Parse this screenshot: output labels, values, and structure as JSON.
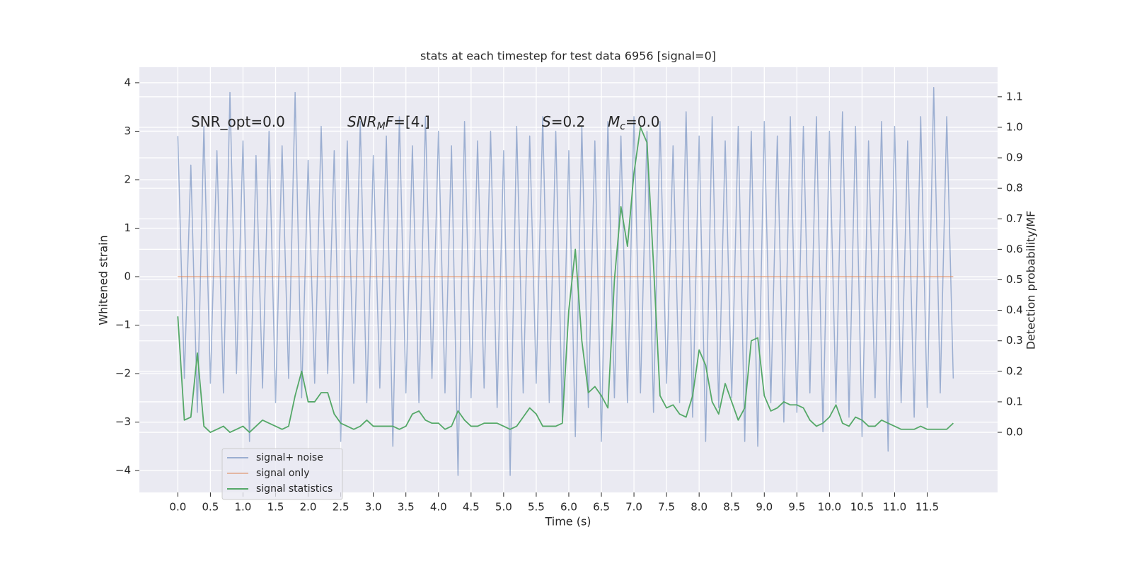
{
  "chart_data": {
    "type": "line",
    "title": "stats at each timestep for test data 6956 [signal=0]",
    "xlabel": "Time (s)",
    "ylabel": "Whitened strain",
    "y2label": "Detection probability/MF",
    "annotations": [
      [
        "SNR_opt=0.0"
      ],
      [
        "SNR",
        "M",
        "F",
        "=[4.]"
      ],
      [
        "S",
        "=0.2"
      ],
      [
        "M",
        "c",
        "=0.0"
      ]
    ],
    "x": [
      0.0,
      0.1,
      0.2,
      0.3,
      0.4,
      0.5,
      0.6,
      0.7,
      0.8,
      0.9,
      1.0,
      1.1,
      1.2,
      1.3,
      1.4,
      1.5,
      1.6,
      1.7,
      1.8,
      1.9,
      2.0,
      2.1,
      2.2,
      2.3,
      2.4,
      2.5,
      2.6,
      2.7,
      2.8,
      2.9,
      3.0,
      3.1,
      3.2,
      3.3,
      3.4,
      3.5,
      3.6,
      3.7,
      3.8,
      3.9,
      4.0,
      4.1,
      4.2,
      4.3,
      4.4,
      4.5,
      4.6,
      4.7,
      4.8,
      4.9,
      5.0,
      5.1,
      5.2,
      5.3,
      5.4,
      5.5,
      5.6,
      5.7,
      5.8,
      5.9,
      6.0,
      6.1,
      6.2,
      6.3,
      6.4,
      6.5,
      6.6,
      6.7,
      6.8,
      6.9,
      7.0,
      7.1,
      7.2,
      7.3,
      7.4,
      7.5,
      7.6,
      7.7,
      7.8,
      7.9,
      8.0,
      8.1,
      8.2,
      8.3,
      8.4,
      8.5,
      8.6,
      8.7,
      8.8,
      8.9,
      9.0,
      9.1,
      9.2,
      9.3,
      9.4,
      9.5,
      9.6,
      9.7,
      9.8,
      9.9,
      10.0,
      10.1,
      10.2,
      10.3,
      10.4,
      10.5,
      10.6,
      10.7,
      10.8,
      10.9,
      11.0,
      11.1,
      11.2,
      11.3,
      11.4,
      11.5,
      11.6,
      11.7,
      11.8,
      11.9
    ],
    "series": [
      {
        "name": "signal+ noise",
        "color": "#4c72b0",
        "values": [
          2.9,
          -2.1,
          2.3,
          -2.8,
          3.1,
          -2.2,
          2.6,
          -2.4,
          3.8,
          -2.0,
          2.8,
          -3.4,
          2.5,
          -2.3,
          3.0,
          -2.6,
          2.7,
          -2.1,
          3.8,
          -2.5,
          2.4,
          -2.2,
          3.1,
          -2.0,
          2.6,
          -3.4,
          2.8,
          -2.2,
          3.2,
          -2.6,
          2.5,
          -2.3,
          2.9,
          -3.5,
          3.3,
          -2.4,
          2.7,
          -2.6,
          3.3,
          -2.1,
          3.0,
          -2.4,
          2.7,
          -4.1,
          3.2,
          -2.5,
          2.8,
          -2.3,
          3.0,
          -2.7,
          2.6,
          -4.1,
          3.1,
          -2.4,
          2.9,
          -2.2,
          3.3,
          -2.6,
          3.0,
          -2.9,
          2.6,
          -3.3,
          3.1,
          -2.7,
          2.8,
          -3.4,
          3.2,
          -2.5,
          2.9,
          -2.6,
          3.3,
          -2.4,
          3.0,
          -2.8,
          3.2,
          -2.2,
          2.7,
          -2.6,
          3.4,
          -2.9,
          2.9,
          -3.4,
          3.3,
          -2.7,
          2.8,
          -2.5,
          3.1,
          -3.4,
          3.0,
          -3.5,
          3.2,
          -2.6,
          2.9,
          -3.0,
          3.3,
          -2.8,
          3.1,
          -2.4,
          3.3,
          -3.2,
          3.0,
          -2.6,
          3.4,
          -2.9,
          3.1,
          -3.3,
          2.8,
          -2.5,
          3.2,
          -3.6,
          3.1,
          -2.6,
          2.8,
          -2.9,
          3.3,
          -2.7,
          3.9,
          -2.4,
          3.3,
          -2.1
        ]
      },
      {
        "name": "signal only",
        "color": "#dd8452",
        "values": [
          0,
          0,
          0,
          0,
          0,
          0,
          0,
          0,
          0,
          0,
          0,
          0,
          0,
          0,
          0,
          0,
          0,
          0,
          0,
          0,
          0,
          0,
          0,
          0,
          0,
          0,
          0,
          0,
          0,
          0,
          0,
          0,
          0,
          0,
          0,
          0,
          0,
          0,
          0,
          0,
          0,
          0,
          0,
          0,
          0,
          0,
          0,
          0,
          0,
          0,
          0,
          0,
          0,
          0,
          0,
          0,
          0,
          0,
          0,
          0,
          0,
          0,
          0,
          0,
          0,
          0,
          0,
          0,
          0,
          0,
          0,
          0,
          0,
          0,
          0,
          0,
          0,
          0,
          0,
          0,
          0,
          0,
          0,
          0,
          0,
          0,
          0,
          0,
          0,
          0,
          0,
          0,
          0,
          0,
          0,
          0,
          0,
          0,
          0,
          0,
          0,
          0,
          0,
          0,
          0,
          0,
          0,
          0,
          0,
          0,
          0,
          0,
          0,
          0,
          0,
          0,
          0,
          0,
          0,
          0
        ]
      },
      {
        "name": "signal statistics",
        "color": "#55a868",
        "axis": "y2",
        "values": [
          0.38,
          0.04,
          0.05,
          0.26,
          0.02,
          0.0,
          0.01,
          0.02,
          0.0,
          0.01,
          0.02,
          0.0,
          0.02,
          0.04,
          0.03,
          0.02,
          0.01,
          0.02,
          0.12,
          0.2,
          0.1,
          0.1,
          0.13,
          0.13,
          0.06,
          0.03,
          0.02,
          0.01,
          0.02,
          0.04,
          0.02,
          0.02,
          0.02,
          0.02,
          0.01,
          0.02,
          0.06,
          0.07,
          0.04,
          0.03,
          0.03,
          0.01,
          0.02,
          0.07,
          0.04,
          0.02,
          0.02,
          0.03,
          0.03,
          0.03,
          0.02,
          0.01,
          0.02,
          0.05,
          0.08,
          0.06,
          0.02,
          0.02,
          0.02,
          0.03,
          0.4,
          0.6,
          0.3,
          0.13,
          0.15,
          0.12,
          0.08,
          0.5,
          0.74,
          0.61,
          0.85,
          1.0,
          0.95,
          0.55,
          0.12,
          0.08,
          0.09,
          0.06,
          0.05,
          0.12,
          0.27,
          0.22,
          0.1,
          0.06,
          0.16,
          0.1,
          0.04,
          0.08,
          0.3,
          0.31,
          0.12,
          0.07,
          0.08,
          0.1,
          0.09,
          0.09,
          0.08,
          0.04,
          0.02,
          0.03,
          0.05,
          0.09,
          0.03,
          0.02,
          0.05,
          0.04,
          0.02,
          0.02,
          0.04,
          0.03,
          0.02,
          0.01,
          0.01,
          0.01,
          0.02,
          0.01,
          0.01,
          0.01,
          0.01,
          0.03
        ]
      }
    ],
    "xlim": [
      -0.59,
      12.58
    ],
    "xticks": [
      {
        "value": 0,
        "label": "0.0"
      },
      {
        "value": 0.5,
        "label": "0.5"
      },
      {
        "value": 1,
        "label": "1.0"
      },
      {
        "value": 1.5,
        "label": "1.5"
      },
      {
        "value": 2,
        "label": "2.0"
      },
      {
        "value": 2.5,
        "label": "2.5"
      },
      {
        "value": 3,
        "label": "3.0"
      },
      {
        "value": 3.5,
        "label": "3.5"
      },
      {
        "value": 4,
        "label": "4.0"
      },
      {
        "value": 4.5,
        "label": "4.5"
      },
      {
        "value": 5,
        "label": "5.0"
      },
      {
        "value": 5.5,
        "label": "5.5"
      },
      {
        "value": 6,
        "label": "6.0"
      },
      {
        "value": 6.5,
        "label": "6.5"
      },
      {
        "value": 7,
        "label": "7.0"
      },
      {
        "value": 7.5,
        "label": "7.5"
      },
      {
        "value": 8,
        "label": "8.0"
      },
      {
        "value": 8.5,
        "label": "8.5"
      },
      {
        "value": 9,
        "label": "9.0"
      },
      {
        "value": 9.5,
        "label": "9.5"
      },
      {
        "value": 10,
        "label": "10.0"
      },
      {
        "value": 10.5,
        "label": "10.5"
      },
      {
        "value": 11,
        "label": "11.0"
      },
      {
        "value": 11.5,
        "label": "11.5"
      }
    ],
    "ylim": [
      -4.45,
      4.32
    ],
    "yticks": [
      {
        "value": -4,
        "label": "−4"
      },
      {
        "value": -3,
        "label": "−3"
      },
      {
        "value": -2,
        "label": "−2"
      },
      {
        "value": -1,
        "label": "−1"
      },
      0,
      1,
      2,
      3,
      4
    ],
    "y2lim": [
      -0.197,
      1.197
    ],
    "y2ticks": [
      {
        "value": 0,
        "label": "0.0"
      },
      {
        "value": 0.1,
        "label": "0.1"
      },
      {
        "value": 0.2,
        "label": "0.2"
      },
      {
        "value": 0.3,
        "label": "0.3"
      },
      {
        "value": 0.4,
        "label": "0.4"
      },
      {
        "value": 0.5,
        "label": "0.5"
      },
      {
        "value": 0.6,
        "label": "0.6"
      },
      {
        "value": 0.7,
        "label": "0.7"
      },
      {
        "value": 0.8,
        "label": "0.8"
      },
      {
        "value": 0.9,
        "label": "0.9"
      },
      {
        "value": 1,
        "label": "1.0"
      },
      {
        "value": 1.1,
        "label": "1.1"
      }
    ],
    "grid": true,
    "legend": "lower left"
  }
}
